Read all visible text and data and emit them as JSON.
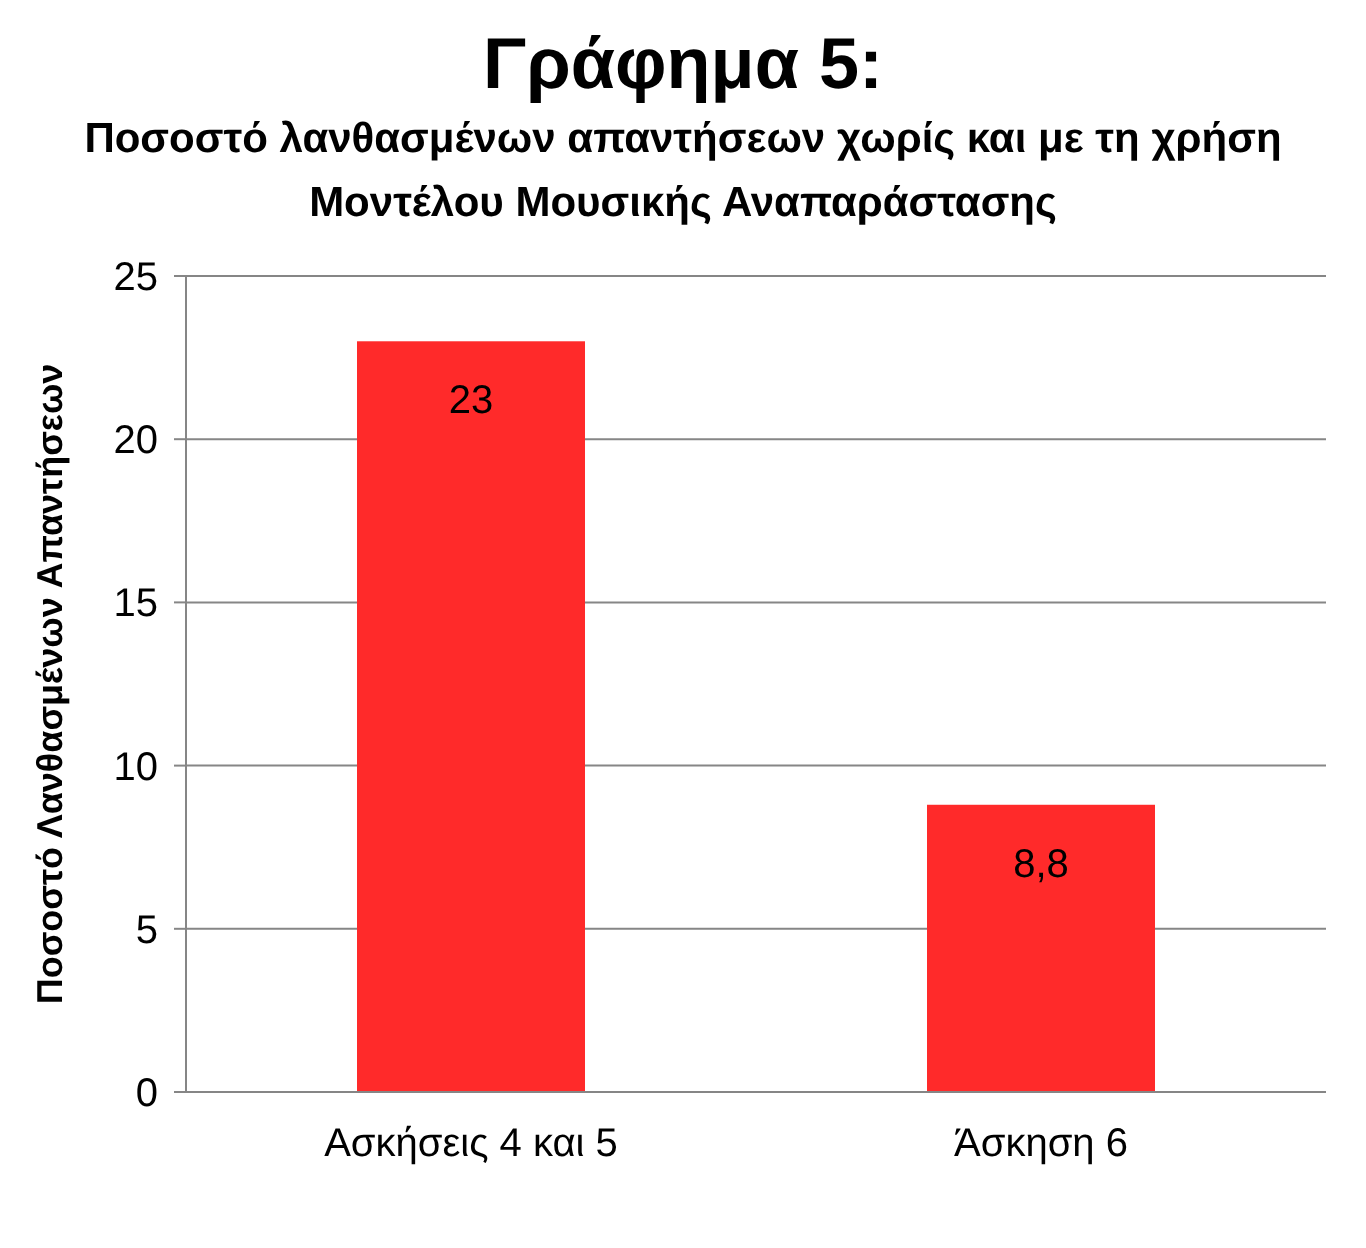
{
  "chart_data": {
    "type": "bar",
    "title": "Γράφημα 5:",
    "subtitle": "Ποσοστό λανθασμένων απαντήσεων χωρίς και με τη χρήση Μοντέλου Μουσικής Αναπαράστασης",
    "ylabel": "Ποσοστό Λανθασμένων Απαντήσεων",
    "categories": [
      "Ασκήσεις 4 και 5",
      "Άσκηση 6"
    ],
    "values": [
      23,
      8.8
    ],
    "value_labels": [
      "23",
      "8,8"
    ],
    "color": "#ff2a2a",
    "ylim": [
      0,
      25
    ],
    "yticks": [
      0,
      5,
      10,
      15,
      20,
      25
    ],
    "grid": "y"
  }
}
